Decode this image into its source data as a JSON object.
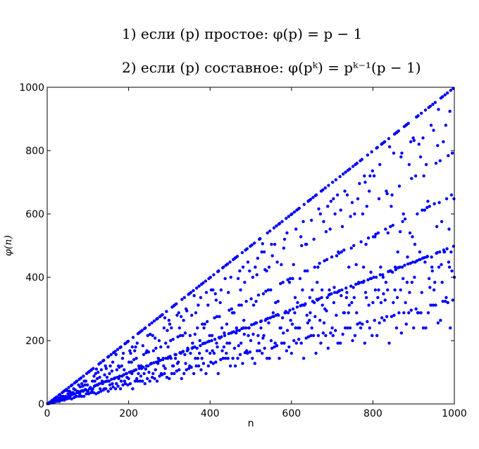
{
  "formulas": {
    "line1": "1) если (p) простое: φ(p) = p − 1",
    "line2": "2) если (p) составное: φ(pᵏ) = pᵏ⁻¹(p − 1)"
  },
  "chart_data": {
    "type": "scatter",
    "title": "",
    "xlabel": "n",
    "ylabel": "φ(n)",
    "xlim": [
      0,
      1000
    ],
    "ylim": [
      0,
      1000
    ],
    "xticks": [
      0,
      200,
      400,
      600,
      800,
      1000
    ],
    "yticks": [
      0,
      200,
      400,
      600,
      800,
      1000
    ],
    "grid": false,
    "marker_color": "#0000ff",
    "series": [
      {
        "function": "euler_totient",
        "n_range": [
          1,
          1000
        ]
      }
    ]
  }
}
